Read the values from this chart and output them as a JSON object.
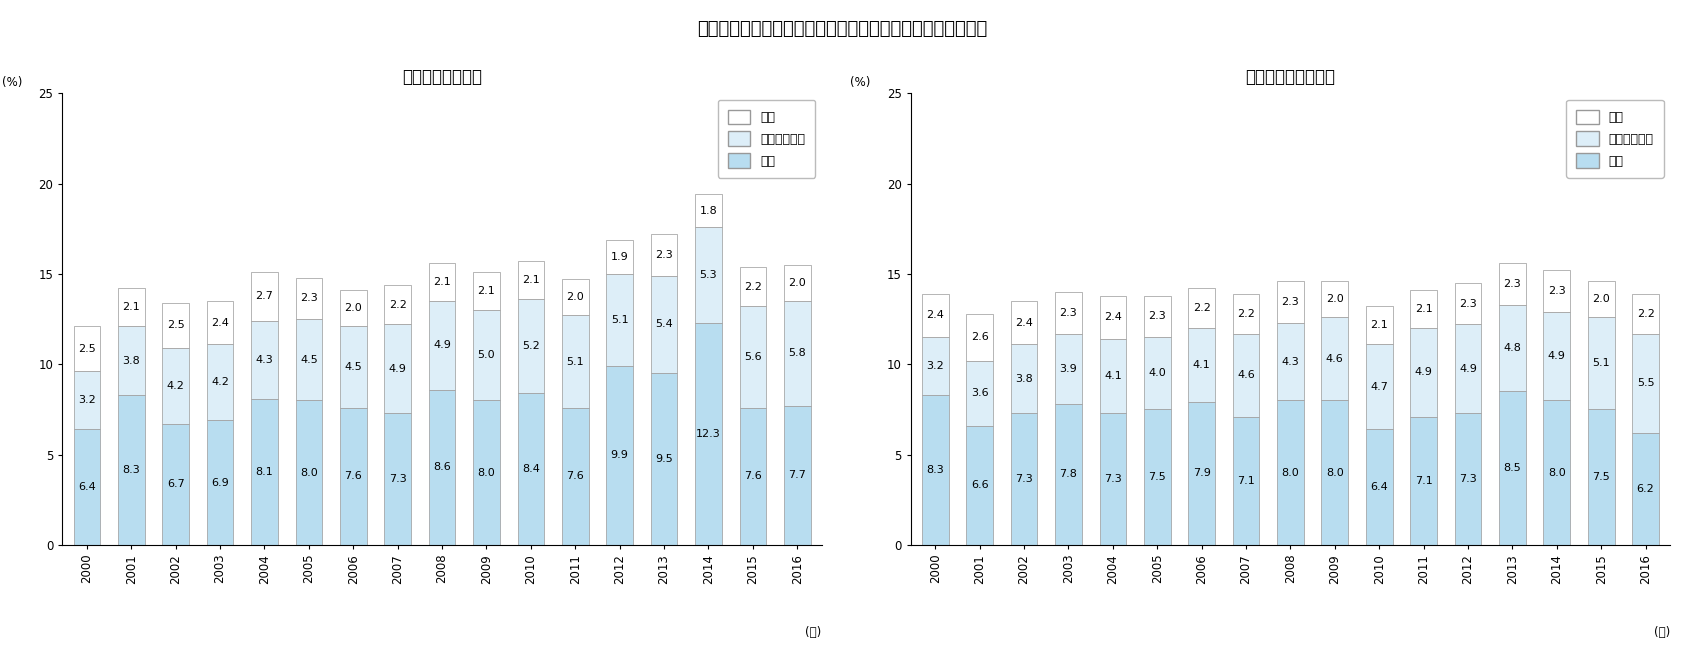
{
  "title": "図２　子育て世帯の消費内訳の推移～「交通・通信」の内訳",
  "subtitle_a": "（ａ）共働き世帯",
  "subtitle_b": "（ｂ）専業主婦世帯",
  "years": [
    2000,
    2001,
    2002,
    2003,
    2004,
    2005,
    2006,
    2007,
    2008,
    2009,
    2010,
    2011,
    2012,
    2013,
    2014,
    2015,
    2016
  ],
  "a_kotsu": [
    6.4,
    8.3,
    6.7,
    6.9,
    8.1,
    8.0,
    7.6,
    7.3,
    8.6,
    8.0,
    8.4,
    7.6,
    9.9,
    9.5,
    12.3,
    7.6,
    7.7
  ],
  "a_jidosha": [
    3.2,
    3.8,
    4.2,
    4.2,
    4.3,
    4.5,
    4.5,
    4.9,
    4.9,
    5.0,
    5.2,
    5.1,
    5.1,
    5.4,
    5.3,
    5.6,
    5.8
  ],
  "a_tsushin": [
    2.5,
    2.1,
    2.5,
    2.4,
    2.7,
    2.3,
    2.0,
    2.2,
    2.1,
    2.1,
    2.1,
    2.0,
    1.9,
    2.3,
    1.8,
    2.2,
    2.0
  ],
  "b_kotsu": [
    8.3,
    6.6,
    7.3,
    7.8,
    7.3,
    7.5,
    7.9,
    7.1,
    8.0,
    8.0,
    6.4,
    7.1,
    7.3,
    8.5,
    8.0,
    7.5,
    6.2
  ],
  "b_jidosha": [
    3.2,
    3.6,
    3.8,
    3.9,
    4.1,
    4.0,
    4.1,
    4.6,
    4.3,
    4.6,
    4.7,
    4.9,
    4.9,
    4.8,
    4.9,
    5.1,
    5.5
  ],
  "b_tsushin": [
    2.4,
    2.6,
    2.4,
    2.3,
    2.4,
    2.3,
    2.2,
    2.2,
    2.3,
    2.0,
    2.1,
    2.1,
    2.3,
    2.3,
    2.3,
    2.0,
    2.2
  ],
  "color_kotsu": "#b8ddf0",
  "color_jidosha": "#ddeef8",
  "color_tsushin": "#ffffff",
  "bar_edge_color": "#999999",
  "ylabel": "(%)",
  "xlabel": "(年)",
  "ylim": [
    0,
    25
  ],
  "yticks": [
    0,
    5,
    10,
    15,
    20,
    25
  ],
  "legend_tsushin": "通信",
  "legend_jidosha": "自動車関係費",
  "legend_kotsu": "交通",
  "background_color": "#ffffff",
  "title_fontsize": 13,
  "subtitle_fontsize": 12,
  "tick_fontsize": 8.5,
  "label_fontsize": 8,
  "bar_width": 0.6
}
